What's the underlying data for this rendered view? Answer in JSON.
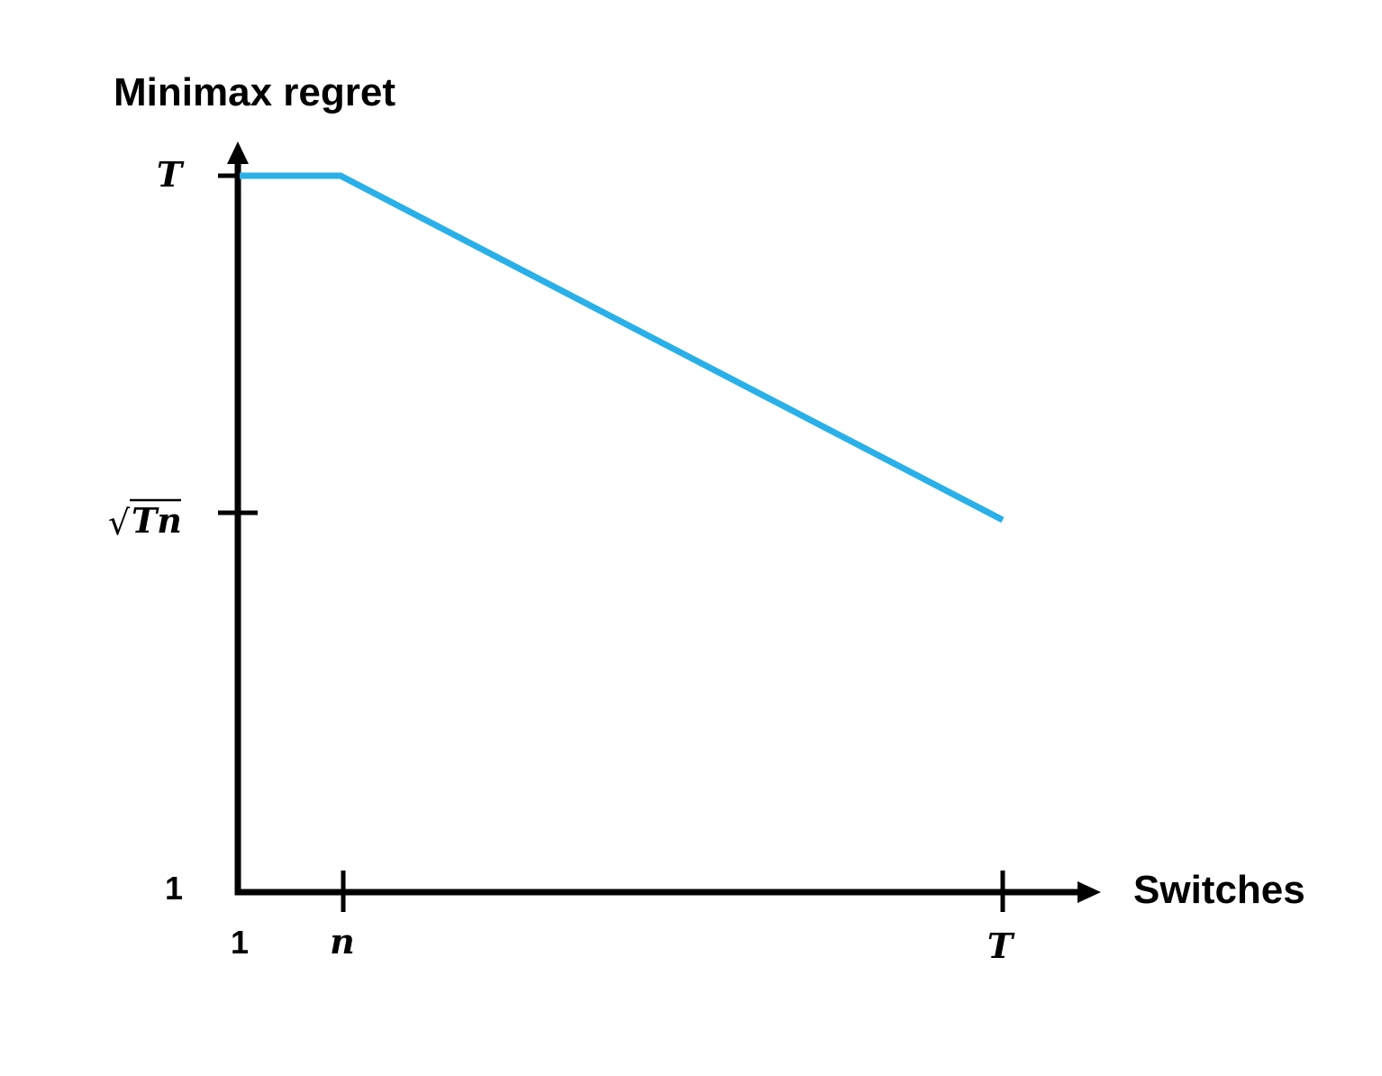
{
  "chart_data": {
    "type": "line",
    "ylabel": "Minimax regret",
    "xlabel": "Switches",
    "x_scale": "log",
    "y_scale": "log",
    "x_ticks": [
      {
        "key": "one",
        "label": "1"
      },
      {
        "key": "n",
        "label": "n"
      },
      {
        "key": "T",
        "label": "T"
      }
    ],
    "y_ticks": [
      {
        "key": "one",
        "label": "1"
      },
      {
        "key": "sqrtTn",
        "label": "√Tn",
        "radical": "√",
        "radicand": "Tn"
      },
      {
        "key": "T",
        "label": "T"
      }
    ],
    "series": [
      {
        "color": "#29b0e8",
        "points": [
          {
            "x": "1",
            "y": "T"
          },
          {
            "x": "n",
            "y": "T"
          },
          {
            "x": "T",
            "y": "√Tn"
          }
        ]
      }
    ],
    "grid": false,
    "legend": false,
    "axis_color": "#000000"
  }
}
